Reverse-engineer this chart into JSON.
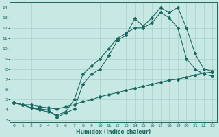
{
  "bg_color": "#c8e8e4",
  "grid_color": "#a8d0cc",
  "line_color": "#1a6860",
  "xlabel": "Humidex (Indice chaleur)",
  "xlim": [
    -0.5,
    23.5
  ],
  "ylim": [
    2.8,
    14.5
  ],
  "xticks": [
    0,
    1,
    2,
    3,
    4,
    5,
    6,
    7,
    8,
    9,
    10,
    11,
    12,
    13,
    14,
    15,
    16,
    17,
    18,
    19,
    20,
    21,
    22,
    23
  ],
  "yticks": [
    3,
    4,
    5,
    6,
    7,
    8,
    9,
    10,
    11,
    12,
    13,
    14
  ],
  "line1_x": [
    0,
    1,
    2,
    3,
    4,
    5,
    6,
    7,
    8,
    9,
    10,
    11,
    12,
    13,
    14,
    15,
    16,
    17,
    18,
    19,
    20,
    21,
    22,
    23
  ],
  "line1_y": [
    4.7,
    4.5,
    4.2,
    4.1,
    4.0,
    3.3,
    3.7,
    4.1,
    6.5,
    7.5,
    8.0,
    9.3,
    10.8,
    11.3,
    12.9,
    12.2,
    13.0,
    14.0,
    13.5,
    14.0,
    12.0,
    9.5,
    8.0,
    7.8
  ],
  "line2_x": [
    0,
    1,
    2,
    3,
    4,
    5,
    6,
    7,
    8,
    9,
    10,
    11,
    12,
    13,
    14,
    15,
    16,
    17,
    18,
    19,
    20,
    21,
    22,
    23
  ],
  "line2_y": [
    4.7,
    4.5,
    4.2,
    4.0,
    3.8,
    3.5,
    3.8,
    5.0,
    7.5,
    8.3,
    9.0,
    10.0,
    11.0,
    11.5,
    12.0,
    12.0,
    12.5,
    13.5,
    13.0,
    12.0,
    9.0,
    8.0,
    7.5,
    7.3
  ],
  "line3_x": [
    0,
    1,
    2,
    3,
    4,
    5,
    6,
    7,
    8,
    9,
    10,
    11,
    12,
    13,
    14,
    15,
    16,
    17,
    18,
    19,
    20,
    21,
    22,
    23
  ],
  "line3_y": [
    4.7,
    4.5,
    4.5,
    4.3,
    4.2,
    4.1,
    4.3,
    4.5,
    4.8,
    5.0,
    5.3,
    5.5,
    5.7,
    5.9,
    6.1,
    6.3,
    6.5,
    6.7,
    6.9,
    7.0,
    7.2,
    7.4,
    7.6,
    7.7
  ]
}
